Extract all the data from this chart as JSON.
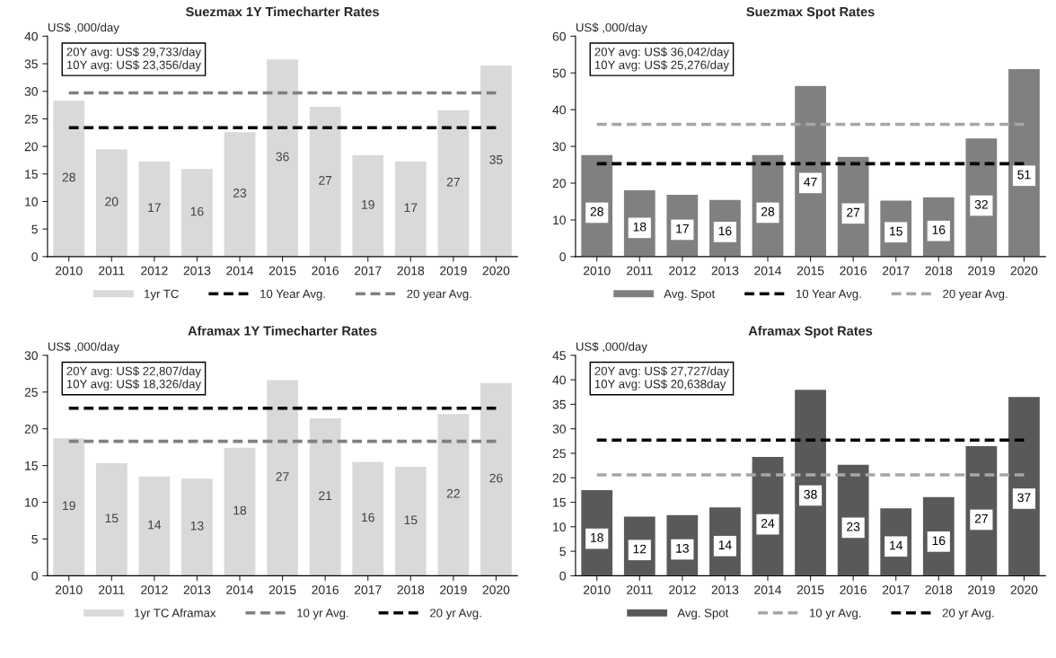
{
  "chart_data": [
    {
      "type": "bar",
      "title": "Suezmax 1Y Timecharter Rates",
      "ylabel": "US$ ,000/day",
      "annotations": [
        "20Y avg: US$ 29,733/day\n10Y avg: US$ 23,356/day"
      ],
      "categories": [
        "2010",
        "2011",
        "2012",
        "2013",
        "2014",
        "2015",
        "2016",
        "2017",
        "2018",
        "2019",
        "2020"
      ],
      "ylim": [
        0,
        40
      ],
      "yticks": [
        0,
        5,
        10,
        15,
        20,
        25,
        30,
        35,
        40
      ],
      "grid": false,
      "legend": "bottom",
      "line_style": "dashed",
      "series": [
        {
          "name": "1yr TC",
          "color": "#d9d9d9",
          "values": [
            28.4,
            19.6,
            17.4,
            16.0,
            22.7,
            35.9,
            27.3,
            18.5,
            17.4,
            26.7,
            34.8
          ],
          "value_labels": [
            "28",
            "20",
            "17",
            "16",
            "23",
            "36",
            "27",
            "19",
            "17",
            "27",
            "35"
          ]
        },
        {
          "name": "10 Year Avg.",
          "type": "line",
          "color": "#000000",
          "values": [
            23.4,
            23.4,
            23.4,
            23.4,
            23.4,
            23.4,
            23.4,
            23.4,
            23.4,
            23.4,
            23.4
          ]
        },
        {
          "name": "20 year Avg.",
          "type": "line",
          "color": "#808080",
          "values": [
            29.7,
            29.7,
            29.7,
            29.7,
            29.7,
            29.7,
            29.7,
            29.7,
            29.7,
            29.7,
            29.7
          ]
        }
      ]
    },
    {
      "type": "bar",
      "title": "Suezmax Spot Rates",
      "ylabel": "US$ ,000/day",
      "annotations": [
        "20Y avg: US$ 36,042/day\n10Y avg: US$ 25,276/day"
      ],
      "categories": [
        "2010",
        "2011",
        "2012",
        "2013",
        "2014",
        "2015",
        "2016",
        "2017",
        "2018",
        "2019",
        "2020"
      ],
      "ylim": [
        0,
        60
      ],
      "yticks": [
        0,
        10,
        20,
        30,
        40,
        50,
        60
      ],
      "grid": false,
      "legend": "bottom",
      "line_style": "dashed",
      "series": [
        {
          "name": "Avg. Spot",
          "color": "#808080",
          "values": [
            27.8,
            18.2,
            17.0,
            15.6,
            27.8,
            46.6,
            27.3,
            15.4,
            16.3,
            32.3,
            51.2
          ],
          "value_labels": [
            "28",
            "18",
            "17",
            "16",
            "28",
            "47",
            "27",
            "15",
            "16",
            "32",
            "51"
          ]
        },
        {
          "name": "10 Year Avg.",
          "type": "line",
          "color": "#000000",
          "values": [
            25.3,
            25.3,
            25.3,
            25.3,
            25.3,
            25.3,
            25.3,
            25.3,
            25.3,
            25.3,
            25.3
          ]
        },
        {
          "name": "20 year Avg.",
          "type": "line",
          "color": "#a6a6a6",
          "values": [
            36.0,
            36.0,
            36.0,
            36.0,
            36.0,
            36.0,
            36.0,
            36.0,
            36.0,
            36.0,
            36.0
          ]
        }
      ]
    },
    {
      "type": "bar",
      "title": "Aframax 1Y Timecharter Rates",
      "ylabel": "US$ ,000/day",
      "annotations": [
        "20Y avg: US$ 22,807/day\n10Y avg: US$ 18,326/day"
      ],
      "categories": [
        "2010",
        "2011",
        "2012",
        "2013",
        "2014",
        "2015",
        "2016",
        "2017",
        "2018",
        "2019",
        "2020"
      ],
      "ylim": [
        0,
        30
      ],
      "yticks": [
        0,
        5,
        10,
        15,
        20,
        25,
        30
      ],
      "grid": false,
      "legend": "bottom",
      "line_style": "dashed",
      "series": [
        {
          "name": "1yr TC Aframax",
          "color": "#d9d9d9",
          "values": [
            18.8,
            15.4,
            13.6,
            13.3,
            17.5,
            26.7,
            21.5,
            15.6,
            14.9,
            22.1,
            26.3
          ],
          "value_labels": [
            "19",
            "15",
            "14",
            "13",
            "18",
            "27",
            "21",
            "16",
            "15",
            "22",
            "26"
          ]
        },
        {
          "name": "10 yr Avg.",
          "type": "line",
          "color": "#808080",
          "values": [
            18.3,
            18.3,
            18.3,
            18.3,
            18.3,
            18.3,
            18.3,
            18.3,
            18.3,
            18.3,
            18.3
          ]
        },
        {
          "name": "20 yr Avg.",
          "type": "line",
          "color": "#000000",
          "values": [
            22.8,
            22.8,
            22.8,
            22.8,
            22.8,
            22.8,
            22.8,
            22.8,
            22.8,
            22.8,
            22.8
          ]
        }
      ]
    },
    {
      "type": "bar",
      "title": "Aframax Spot Rates",
      "ylabel": "US$ ,000/day",
      "annotations": [
        "20Y avg: US$ 27,727/day\n10Y avg: US$ 20,638day"
      ],
      "categories": [
        "2010",
        "2011",
        "2012",
        "2013",
        "2014",
        "2015",
        "2016",
        "2017",
        "2018",
        "2019",
        "2020"
      ],
      "ylim": [
        0,
        45
      ],
      "yticks": [
        0,
        5,
        10,
        15,
        20,
        25,
        30,
        35,
        40,
        45
      ],
      "grid": false,
      "legend": "bottom",
      "line_style": "dashed",
      "series": [
        {
          "name": "Avg. Spot",
          "color": "#595959",
          "values": [
            17.6,
            12.2,
            12.5,
            14.1,
            24.4,
            38.1,
            22.8,
            13.9,
            16.2,
            26.6,
            36.6
          ],
          "value_labels": [
            "18",
            "12",
            "13",
            "14",
            "24",
            "38",
            "23",
            "14",
            "16",
            "27",
            "37"
          ]
        },
        {
          "name": "10 yr Avg.",
          "type": "line",
          "color": "#a6a6a6",
          "values": [
            20.6,
            20.6,
            20.6,
            20.6,
            20.6,
            20.6,
            20.6,
            20.6,
            20.6,
            20.6,
            20.6
          ]
        },
        {
          "name": "20 yr Avg.",
          "type": "line",
          "color": "#000000",
          "values": [
            27.7,
            27.7,
            27.7,
            27.7,
            27.7,
            27.7,
            27.7,
            27.7,
            27.7,
            27.7,
            27.7
          ]
        }
      ]
    }
  ]
}
